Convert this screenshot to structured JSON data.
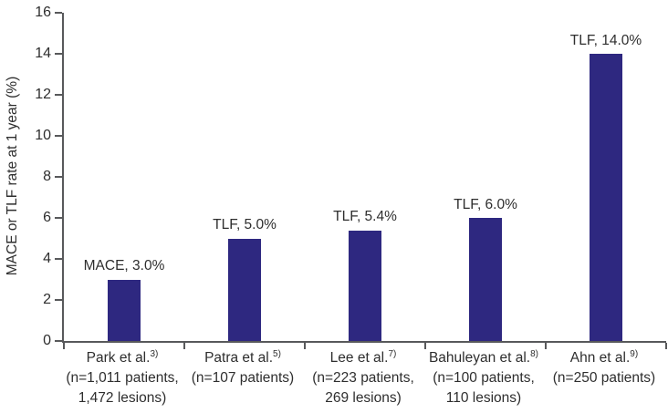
{
  "chart_data": {
    "type": "bar",
    "title": "",
    "xlabel": "",
    "ylabel": "MACE or TLF rate at 1 year (%)",
    "ylim": [
      0,
      16
    ],
    "yticks": [
      0,
      2,
      4,
      6,
      8,
      10,
      12,
      14,
      16
    ],
    "grid": false,
    "legend": "none",
    "bar_color": "#2e2880",
    "axis_color": "#58595b",
    "text_color": "#2e2e2e",
    "categories": [
      {
        "label": "Park et al.",
        "ref": "3)",
        "sublines": [
          "(n=1,011 patients,",
          "1,472 lesions)"
        ]
      },
      {
        "label": "Patra et al.",
        "ref": "5)",
        "sublines": [
          "(n=107 patients)"
        ]
      },
      {
        "label": "Lee et al.",
        "ref": "7)",
        "sublines": [
          "(n=223 patients,",
          "269 lesions)"
        ]
      },
      {
        "label": "Bahuleyan et al.",
        "ref": "8)",
        "sublines": [
          "(n=100 patients,",
          "110 lesions)"
        ]
      },
      {
        "label": "Ahn et al.",
        "ref": "9)",
        "sublines": [
          "(n=250 patients)"
        ]
      }
    ],
    "series": [
      {
        "name": "MACE or TLF rate at 1 year (%)",
        "values": [
          3.0,
          5.0,
          5.4,
          6.0,
          14.0
        ]
      }
    ],
    "point_labels": [
      "MACE, 3.0%",
      "TLF, 5.0%",
      "TLF, 5.4%",
      "TLF, 6.0%",
      "TLF, 14.0%"
    ]
  }
}
